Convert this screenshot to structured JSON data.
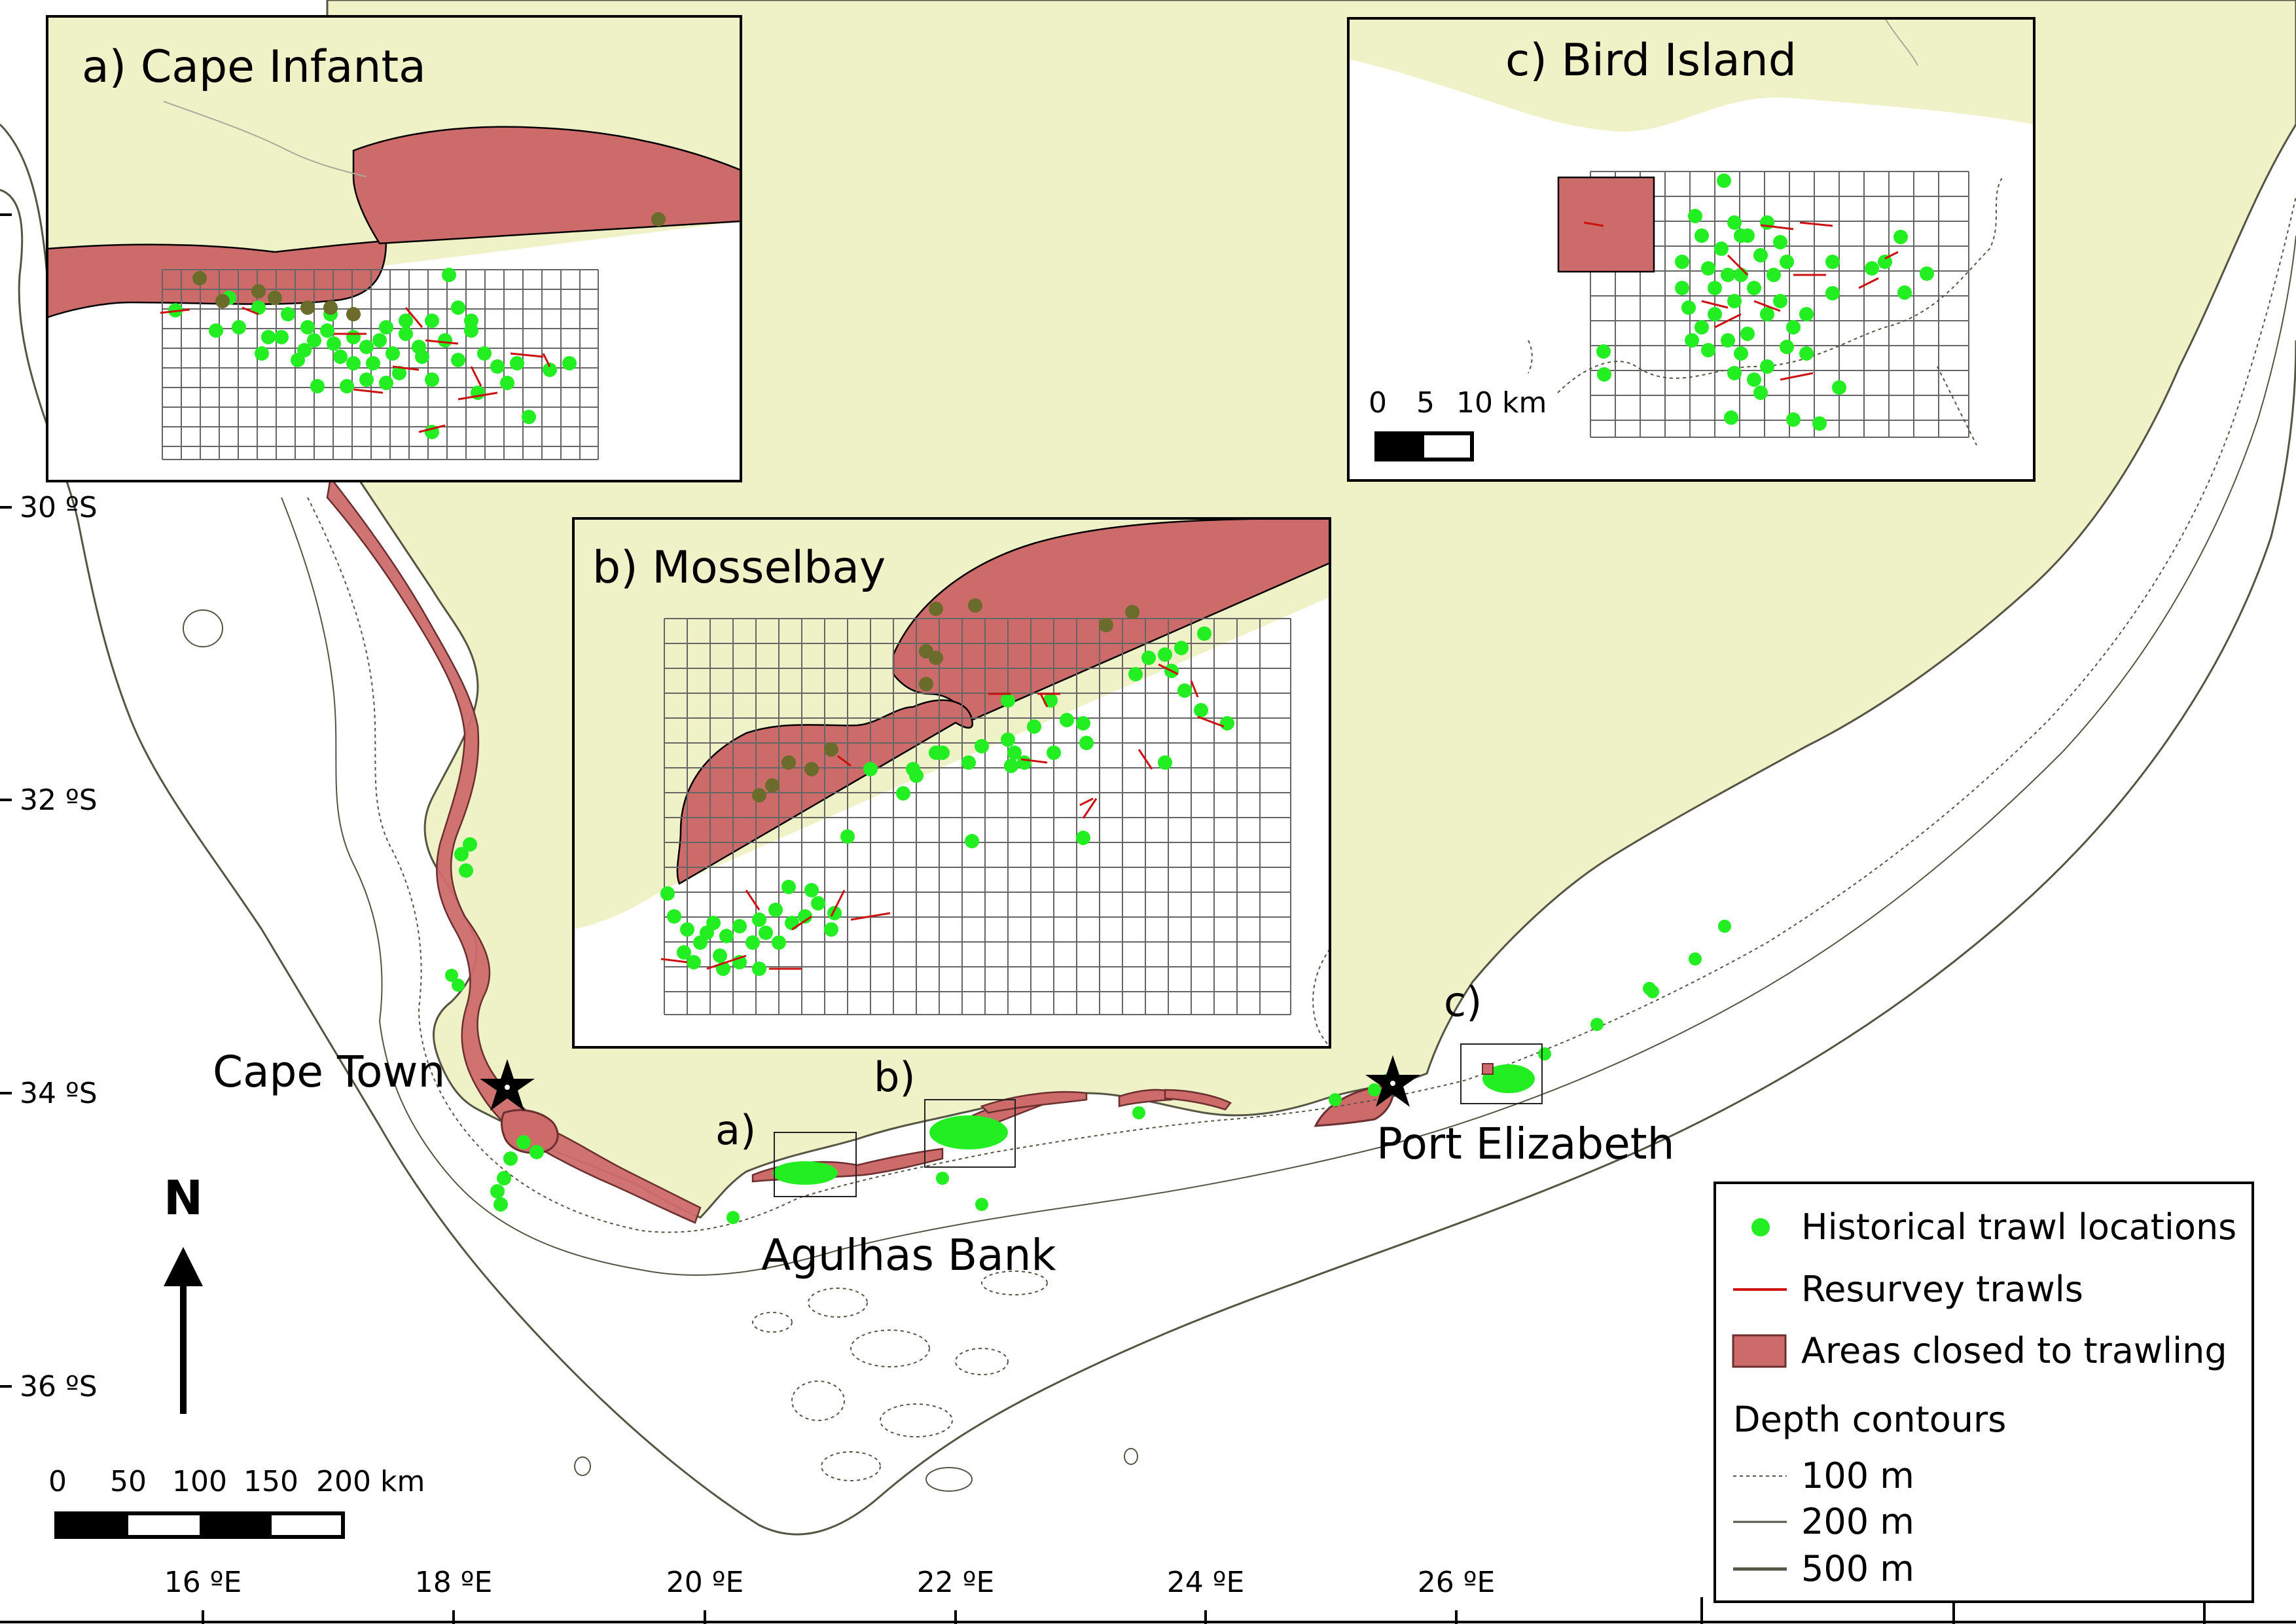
{
  "map": {
    "colors": {
      "ocean": "#ffffff",
      "land": "#eff2c7",
      "closed_fill": "#cd6b6b",
      "closed_stroke": "#6b2f2f",
      "historical": "#22ee22",
      "resurvey": "#cc1111",
      "contour": "#555544",
      "border": "#aaa89a"
    },
    "lat_labels": [
      "30 ºS",
      "32 ºS",
      "34 ºS",
      "36 ºS"
    ],
    "lon_labels": [
      "16 ºE",
      "18 ºE",
      "20 ºE",
      "22 ºE",
      "24 ºE",
      "26 ºE"
    ],
    "places": {
      "cape_town": "Cape Town",
      "port_elizabeth": "Port Elizabeth",
      "agulhas_bank": "Agulhas Bank"
    },
    "region_markers": [
      "a)",
      "b)",
      "c)"
    ],
    "north_label": "N",
    "main_scale": {
      "ticks": [
        "0",
        "50",
        "100",
        "150",
        "200 km"
      ]
    },
    "inset_scale": {
      "ticks": [
        "0",
        "5",
        "10 km"
      ]
    },
    "insets": {
      "a": {
        "title": "a) Cape Infanta"
      },
      "b": {
        "title": "b) Mosselbay"
      },
      "c": {
        "title": "c) Bird Island"
      }
    },
    "legend": {
      "historical": "Historical trawl locations",
      "resurvey": "Resurvey trawls",
      "closed": "Areas closed to trawling",
      "depth_title": "Depth contours",
      "d100": "100 m",
      "d200": "200 m",
      "d500": "500 m"
    }
  }
}
